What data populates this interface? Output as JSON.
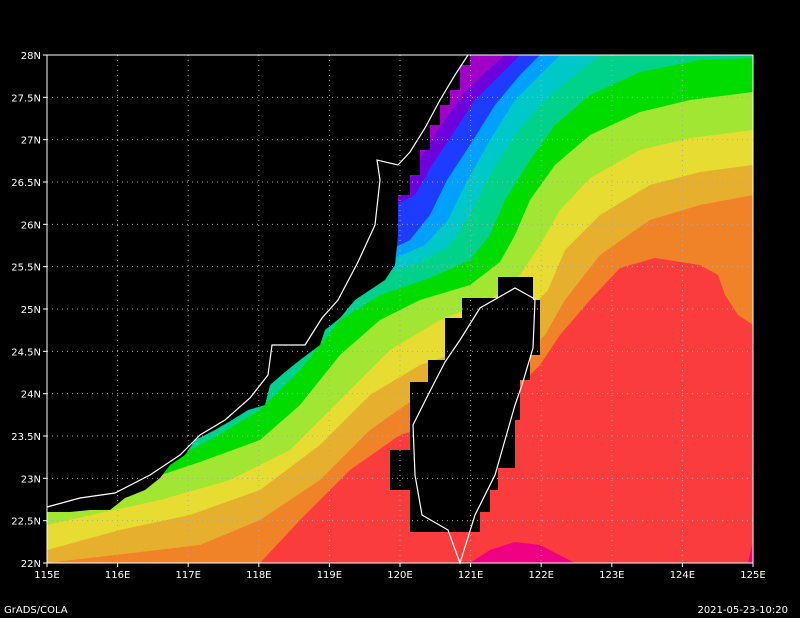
{
  "app": {
    "footer_left": "GrADS/COLA",
    "footer_right": "2021-05-23-10:20"
  },
  "axes": {
    "lon_ticks": [
      "115E",
      "116E",
      "117E",
      "118E",
      "119E",
      "120E",
      "121E",
      "122E",
      "123E",
      "124E",
      "125E"
    ],
    "lat_ticks": [
      "22N",
      "22.5N",
      "23N",
      "23.5N",
      "24N",
      "24.5N",
      "25N",
      "25.5N",
      "26N",
      "26.5N",
      "27N",
      "27.5N",
      "28N"
    ],
    "lon_range": [
      115,
      125
    ],
    "lat_range": [
      22,
      28
    ],
    "grid": true
  },
  "colors": {
    "land": "#000000",
    "coastline": "#ffffff",
    "gridlines": "#aaaaaa",
    "bands": [
      "#a000c8",
      "#6e00dc",
      "#1e3cff",
      "#00a0ff",
      "#00c8c8",
      "#00d28c",
      "#00dc00",
      "#a0e632",
      "#e6dc32",
      "#e6af2d",
      "#f08228",
      "#fa3c3c",
      "#f00082"
    ]
  }
}
